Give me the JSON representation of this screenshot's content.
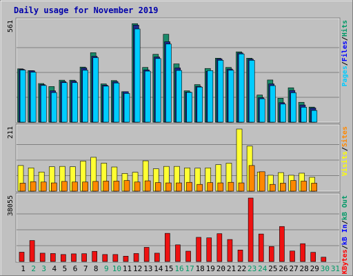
{
  "chart_data": {
    "type": "bar",
    "title": "Daily usage for November 2019",
    "categories": [
      "1",
      "2",
      "3",
      "4",
      "5",
      "6",
      "7",
      "8",
      "9",
      "10",
      "11",
      "12",
      "13",
      "14",
      "15",
      "16",
      "17",
      "18",
      "19",
      "20",
      "21",
      "22",
      "23",
      "24",
      "25",
      "26",
      "27",
      "28",
      "29",
      "30",
      "31"
    ],
    "weekend_days": [
      "2",
      "3",
      "9",
      "10",
      "16",
      "17",
      "23",
      "24",
      "30",
      "31"
    ],
    "panels": [
      {
        "id": "hits",
        "ymax_label": "561",
        "ymax": 561,
        "axis_text": [
          {
            "text": "Pages",
            "color": "#00ccff"
          },
          {
            "text": "/",
            "color": "#000000"
          },
          {
            "text": "Files",
            "color": "#0000ff"
          },
          {
            "text": "/",
            "color": "#000000"
          },
          {
            "text": "Hits",
            "color": "#009966"
          }
        ],
        "series": [
          {
            "name": "Hits",
            "color": "#1a8a6a",
            "values": [
              301,
              291,
              218,
              201,
              237,
              237,
              311,
              392,
              216,
              235,
              172,
              556,
              309,
              383,
              496,
              329,
              177,
              212,
              303,
              361,
              309,
              397,
              361,
              153,
              238,
              135,
              194,
              112,
              85,
              null,
              null
            ]
          },
          {
            "name": "Files",
            "color": "#1a2a8a",
            "values": [
              298,
              290,
              212,
              177,
              229,
              232,
              306,
              372,
              209,
              229,
              172,
              548,
              295,
              368,
              454,
              306,
              170,
              202,
              287,
              357,
              300,
              391,
              356,
              138,
              216,
              110,
              179,
              97,
              80,
              null,
              null
            ]
          },
          {
            "name": "Pages",
            "color": "#00ccff",
            "values": [
              294,
              282,
              207,
              167,
              223,
              223,
              293,
              364,
              203,
              221,
              162,
              526,
              288,
              359,
              441,
              292,
              168,
              198,
              291,
              349,
              293,
              385,
              349,
              132,
              206,
              102,
              166,
              84,
              66,
              null,
              null
            ]
          }
        ]
      },
      {
        "id": "visits",
        "ymax_label": "211",
        "ymax": 211,
        "axis_text": [
          {
            "text": "Visits",
            "color": "#ffff00"
          },
          {
            "text": "/",
            "color": "#000000"
          },
          {
            "text": "Sites",
            "color": "#ff8800"
          }
        ],
        "series": [
          {
            "name": "Visits",
            "color": "#ffff33",
            "values": [
              87,
              79,
              65,
              83,
              84,
              83,
              102,
              115,
              95,
              82,
              60,
              64,
              103,
              76,
              84,
              84,
              79,
              78,
              79,
              90,
              95,
              211,
              153,
              65,
              54,
              63,
              54,
              61,
              47,
              null,
              null
            ]
          },
          {
            "name": "Sites",
            "color": "#ff8800",
            "values": [
              27,
              32,
              31,
              28,
              33,
              31,
              31,
              33,
              34,
              34,
              36,
              31,
              35,
              29,
              28,
              28,
              30,
              23,
              29,
              28,
              30,
              28,
              87,
              66,
              23,
              27,
              36,
              34,
              27,
              null,
              null
            ]
          }
        ]
      },
      {
        "id": "kbytes",
        "ymax_label": "38055",
        "ymax": 38055,
        "axis_text": [
          {
            "text": "KBytes",
            "color": "#ff0000"
          },
          {
            "text": "/",
            "color": "#000000"
          },
          {
            "text": "kB In",
            "color": "#0000ff"
          },
          {
            "text": "/",
            "color": "#000000"
          },
          {
            "text": "kB Out",
            "color": "#009966"
          }
        ],
        "series": [
          {
            "name": "KBytes",
            "color": "#ee1111",
            "values": [
              5600,
              12600,
              5000,
              4800,
              4200,
              4600,
              4700,
              6100,
              4200,
              4200,
              3200,
              4800,
              8500,
              5000,
              16900,
              10000,
              6200,
              14500,
              14200,
              16700,
              13200,
              6900,
              38055,
              16500,
              9000,
              21000,
              6300,
              10700,
              5500,
              2600,
              null
            ]
          }
        ]
      }
    ]
  }
}
